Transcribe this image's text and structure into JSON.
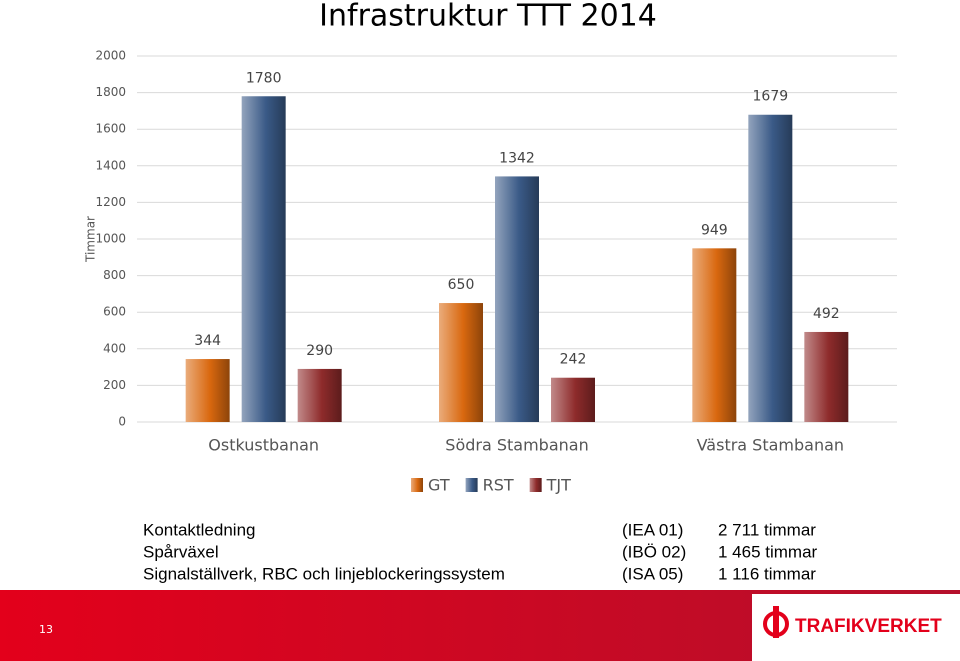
{
  "chart_data": {
    "type": "bar",
    "title": "Infrastruktur TTT 2014",
    "y_label": "Timmar",
    "categories": [
      "Ostkustbanan",
      "Södra Stambanan",
      "Västra Stambanan"
    ],
    "series": [
      {
        "name": "GT",
        "color": "#d9680f",
        "values": [
          344,
          650,
          949
        ]
      },
      {
        "name": "RST",
        "color": "#3a5a87",
        "values": [
          1780,
          1342,
          1679
        ]
      },
      {
        "name": "TJT",
        "color": "#8e2b2b",
        "values": [
          290,
          242,
          492
        ]
      }
    ],
    "ylim": [
      0,
      2000
    ],
    "yticks": [
      0,
      200,
      400,
      600,
      800,
      1000,
      1200,
      1400,
      1600,
      1800,
      2000
    ],
    "grid": true,
    "legend": "bottom"
  },
  "notes": {
    "rows": [
      [
        "Kontaktledning",
        "(IEA 01)",
        "2 711 timmar"
      ],
      [
        "Spårväxel",
        "(IBÖ 02)",
        "1 465 timmar"
      ],
      [
        "Signalställverk, RBC och linjeblockeringssystem",
        "(ISA 05)",
        "1 116 timmar"
      ]
    ]
  },
  "footer": {
    "page": "13",
    "logo": "TRAFIKVERKET"
  }
}
